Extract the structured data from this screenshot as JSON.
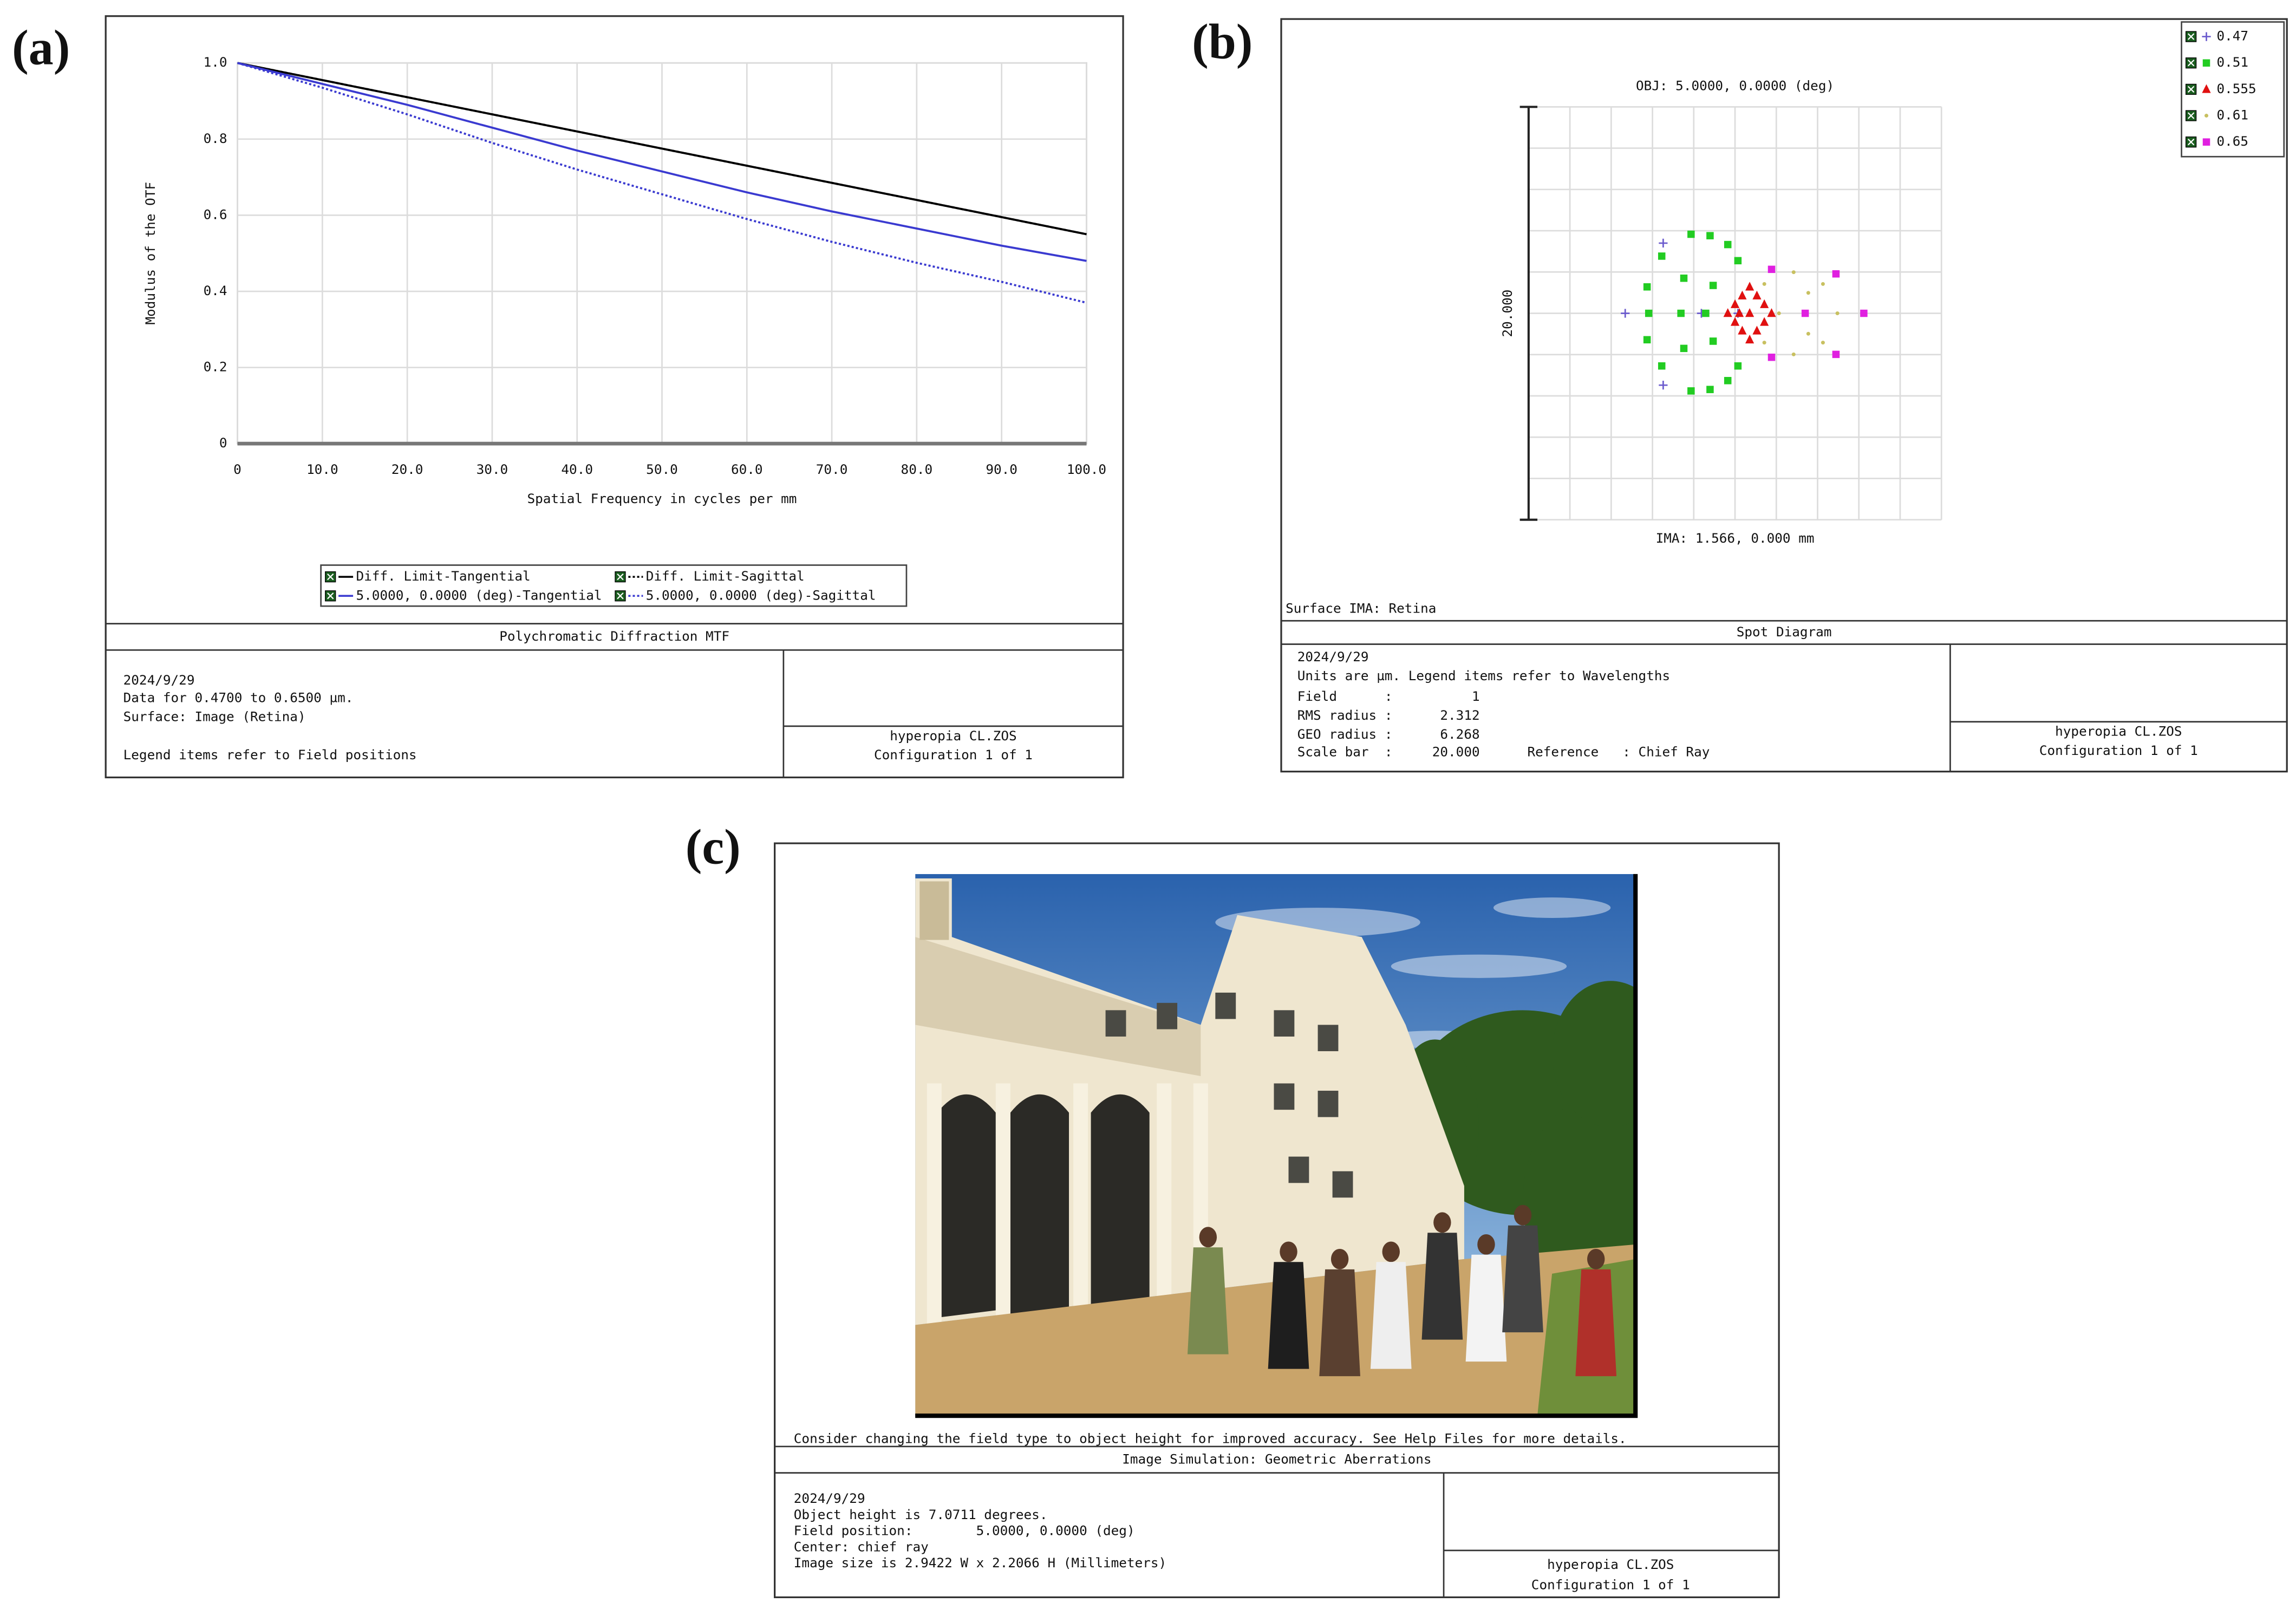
{
  "panel_labels": [
    "(a)",
    "(b)",
    "(c)"
  ],
  "chart_data": [
    {
      "type": "line",
      "x_label": "Spatial Frequency in cycles per mm",
      "y_label": "Modulus of the OTF",
      "x": [
        0,
        10,
        20,
        30,
        40,
        50,
        60,
        70,
        80,
        90,
        100
      ],
      "series": [
        {
          "name": "Diff. Limit-Tangential",
          "color": "#000000",
          "dash": "solid",
          "values": [
            1,
            0.955,
            0.91,
            0.865,
            0.82,
            0.775,
            0.73,
            0.685,
            0.64,
            0.595,
            0.55
          ]
        },
        {
          "name": "Diff. Limit-Sagittal",
          "color": "#000000",
          "dash": "dotted",
          "values": [
            1,
            0.955,
            0.91,
            0.865,
            0.82,
            0.775,
            0.73,
            0.685,
            0.64,
            0.595,
            0.55
          ]
        },
        {
          "name": "5.0000, 0.0000 (deg)-Tangential",
          "color": "#3a3ad0",
          "dash": "solid",
          "values": [
            1,
            0.945,
            0.89,
            0.83,
            0.77,
            0.715,
            0.66,
            0.61,
            0.565,
            0.52,
            0.48
          ]
        },
        {
          "name": "5.0000, 0.0000 (deg)-Sagittal",
          "color": "#3a3ad0",
          "dash": "dotted",
          "values": [
            1,
            0.935,
            0.865,
            0.79,
            0.72,
            0.655,
            0.59,
            0.53,
            0.475,
            0.425,
            0.37
          ]
        }
      ],
      "xlim": [
        0,
        100
      ],
      "xticks": [
        0,
        {
          "value": 10,
          "label": "10.0"
        },
        {
          "value": 20,
          "label": "20.0"
        },
        {
          "value": 30,
          "label": "30.0"
        },
        {
          "value": 40,
          "label": "40.0"
        },
        {
          "value": 50,
          "label": "50.0"
        },
        {
          "value": 60,
          "label": "60.0"
        },
        {
          "value": 70,
          "label": "70.0"
        },
        {
          "value": 80,
          "label": "80.0"
        },
        {
          "value": 90,
          "label": "90.0"
        },
        {
          "value": 100,
          "label": "100.0"
        }
      ],
      "ylim": [
        0,
        1
      ],
      "yticks": [
        0,
        0.2,
        0.4,
        0.6,
        0.8,
        {
          "value": 1,
          "label": "1.0"
        }
      ],
      "grid": true,
      "footer": {
        "title": "Polychromatic Diffraction MTF",
        "info": [
          "2024/9/29",
          "Data for 0.4700 to 0.6500 µm.",
          "Surface: Image (Retina)",
          "Legend items refer to Field positions"
        ],
        "file": "hyperopia CL.ZOS",
        "config": "Configuration 1 of 1"
      }
    },
    {
      "type": "scatter",
      "title": "OBJ: 5.0000, 0.0000 (deg)",
      "image_label": "IMA: 1.566, 0.000 mm",
      "surface_label": "Surface IMA: Retina",
      "scale_bar": {
        "value": 20,
        "label": "20.000"
      },
      "legend": "upper right",
      "series": [
        {
          "name": "0.47",
          "color": "#6a5acd",
          "marker": "plus",
          "x": [
            -3.48,
            -5.32,
            -3.48,
            -1.63,
            0.14
          ],
          "values": [
            3.4,
            0,
            -3.48,
            0,
            0
          ]
        },
        {
          "name": "0.51",
          "color": "#22cc22",
          "marker": "square",
          "x": [
            -2.13,
            -1.21,
            -0.35,
            -3.55,
            0.14,
            -4.26,
            -4.18,
            -4.26,
            -3.55,
            -2.13,
            -1.21,
            -0.35,
            0.14,
            -2.48,
            -2.62,
            -2.48,
            -1.06,
            -1.06,
            -1.42
          ],
          "values": [
            3.83,
            3.76,
            3.33,
            2.77,
            2.55,
            1.28,
            0,
            -1.28,
            -2.55,
            -3.76,
            -3.69,
            -3.26,
            -2.55,
            1.7,
            0,
            -1.7,
            1.35,
            -1.35,
            0
          ]
        },
        {
          "name": "0.555",
          "color": "#e01010",
          "marker": "triangle",
          "x": [
            0.71,
            0.35,
            1.06,
            0,
            1.42,
            -0.35,
            1.77,
            0,
            1.42,
            0.35,
            1.06,
            0.71,
            0.71,
            0.21
          ],
          "values": [
            1.28,
            0.85,
            0.85,
            0.43,
            0.43,
            0,
            0,
            -0.43,
            -0.43,
            -0.85,
            -0.85,
            -1.28,
            0,
            0
          ]
        },
        {
          "name": "0.61",
          "color": "#c8c060",
          "marker": "dot",
          "x": [
            2.84,
            4.26,
            4.96,
            4.26,
            2.84,
            1.42,
            1.42,
            3.55,
            3.55,
            2.13
          ],
          "values": [
            1.99,
            1.42,
            0,
            -1.42,
            -1.99,
            1.42,
            -1.42,
            0.99,
            -0.99,
            0
          ]
        },
        {
          "name": "0.65",
          "color": "#e020e0",
          "marker": "square",
          "x": [
            1.77,
            4.89,
            3.4,
            6.24,
            1.77,
            4.89
          ],
          "values": [
            2.13,
            1.91,
            0,
            0,
            -2.13,
            -1.99
          ]
        }
      ],
      "footer": {
        "title": "Spot Diagram",
        "info": [
          "2024/9/29",
          "Units are µm. Legend items refer to Wavelengths",
          "Field      :          1",
          "RMS radius :      2.312",
          "GEO radius :      6.268",
          "Scale bar  :     20.000      Reference   : Chief Ray"
        ],
        "file": "hyperopia CL.ZOS",
        "config": "Configuration 1 of 1"
      }
    }
  ],
  "image_simulation": {
    "note": "Consider changing the field type to object height for improved accuracy. See Help Files for more details.",
    "title": "Image Simulation: Geometric Aberrations",
    "info": [
      "2024/9/29",
      "Object height is 7.0711 degrees.",
      "Field position:        5.0000, 0.0000 (deg)",
      "Center: chief ray",
      "Image size is 2.9422 W x 2.2066 H (Millimeters)"
    ],
    "file": "hyperopia CL.ZOS",
    "config": "Configuration 1 of 1"
  }
}
